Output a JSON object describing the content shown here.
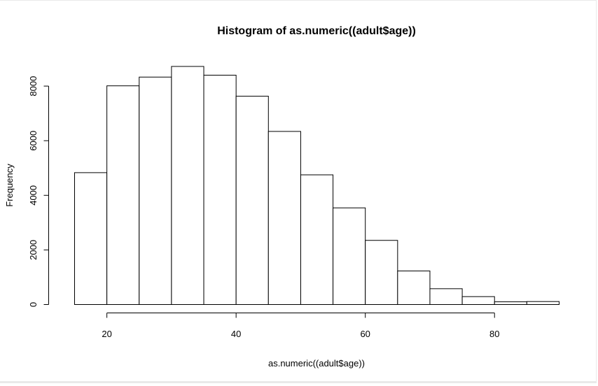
{
  "chart_data": {
    "type": "bar",
    "title": "Histogram of as.numeric((adult$age))",
    "xlabel": "as.numeric((adult$age))",
    "ylabel": "Frequency",
    "bin_edges": [
      15,
      20,
      25,
      30,
      35,
      40,
      45,
      50,
      55,
      60,
      65,
      70,
      75,
      80,
      85,
      90
    ],
    "values": [
      4830,
      8010,
      8330,
      8720,
      8400,
      7630,
      6340,
      4750,
      3540,
      2350,
      1230,
      580,
      290,
      100,
      110
    ],
    "xlim": [
      15,
      90
    ],
    "ylim": [
      0,
      8720
    ],
    "x_ticks": [
      20,
      40,
      60,
      80
    ],
    "y_ticks": [
      0,
      2000,
      4000,
      6000,
      8000
    ],
    "fill_color": "#ffffff",
    "stroke_color": "#000000",
    "grid": false,
    "legend": "none"
  }
}
